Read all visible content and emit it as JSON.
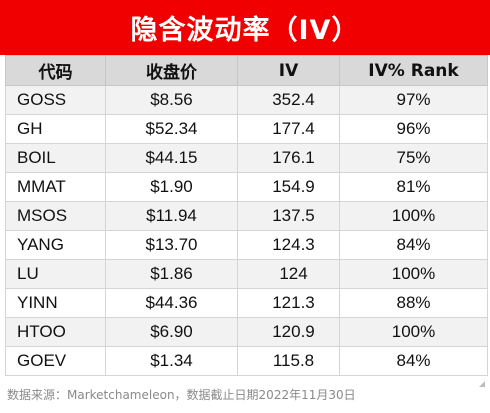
{
  "title": "隐含波动率（IV）",
  "colors": {
    "title_bg": "#f00000",
    "title_text": "#ffffff",
    "header_bg": "#d9d9d9",
    "row_alt_bg": "#f2f2f2",
    "row_bg": "#ffffff"
  },
  "table": {
    "headers": [
      "代码",
      "收盘价",
      "IV",
      "IV% Rank"
    ],
    "rows": [
      [
        "GOSS",
        "$8.56",
        "352.4",
        "97%"
      ],
      [
        "GH",
        "$52.34",
        "177.4",
        "96%"
      ],
      [
        "BOIL",
        "$44.15",
        "176.1",
        "75%"
      ],
      [
        "MMAT",
        "$1.90",
        "154.9",
        "81%"
      ],
      [
        "MSOS",
        "$11.94",
        "137.5",
        "100%"
      ],
      [
        "YANG",
        "$13.70",
        "124.3",
        "84%"
      ],
      [
        "LU",
        "$1.86",
        "124",
        "100%"
      ],
      [
        "YINN",
        "$44.36",
        "121.3",
        "88%"
      ],
      [
        "HTOO",
        "$6.90",
        "120.9",
        "100%"
      ],
      [
        "GOEV",
        "$1.34",
        "115.8",
        "84%"
      ]
    ]
  },
  "source_note": "数据来源：Marketchameleon，数据截止日期2022年11月30日"
}
